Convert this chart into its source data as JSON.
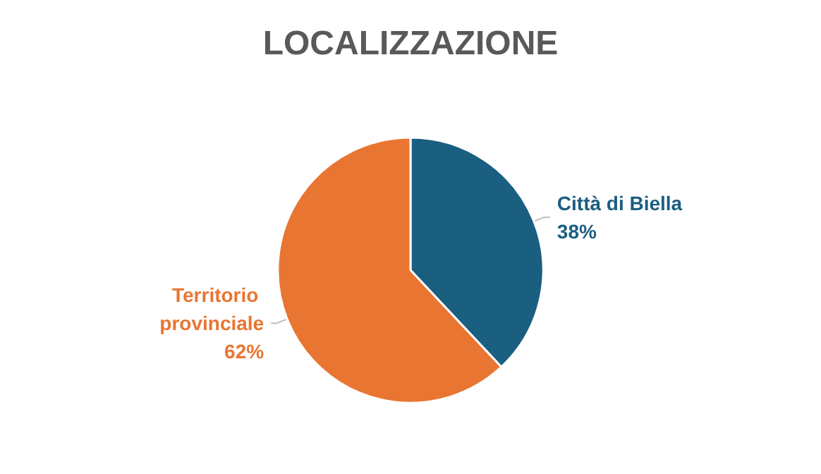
{
  "chart_data": {
    "type": "pie",
    "title": "LOCALIZZAZIONE",
    "categories": [
      "Città di Biella",
      "Territorio provinciale"
    ],
    "values": [
      38,
      62
    ],
    "colors": [
      "#1a5e80",
      "#e97532"
    ],
    "value_labels": [
      "38%",
      "62%"
    ],
    "legend": false
  }
}
